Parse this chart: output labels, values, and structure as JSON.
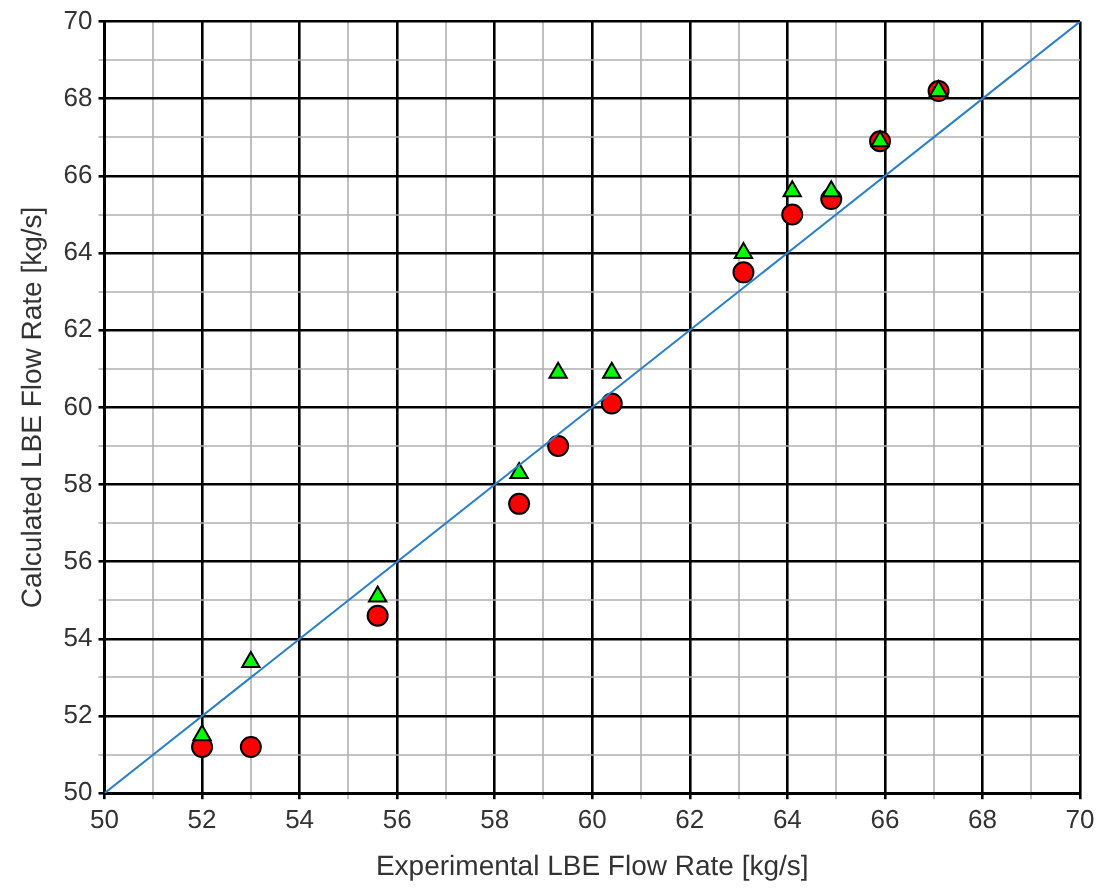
{
  "chart_data": {
    "type": "scatter",
    "xlabel": "Experimental LBE Flow Rate [kg/s]",
    "ylabel": "Calculated LBE Flow Rate [kg/s]",
    "x": [
      52,
      53,
      55.6,
      58.5,
      59.3,
      60.4,
      63.1,
      64.1,
      64.9,
      65.9,
      67.1
    ],
    "series": [
      {
        "color": "#ff0000",
        "marker": "circle",
        "values": [
          51.2,
          51.2,
          54.6,
          57.5,
          59.0,
          60.1,
          63.5,
          65.0,
          65.4,
          66.9,
          68.2
        ]
      },
      {
        "color": "#00ff00",
        "marker": "triangle",
        "values": [
          51.5,
          53.4,
          55.1,
          58.3,
          60.9,
          60.9,
          64.0,
          65.6,
          65.6,
          66.9,
          68.2
        ]
      },
      {
        "type": "line",
        "color": "#2a7fc7",
        "marker": "none",
        "x": [
          50,
          70
        ],
        "values": [
          50,
          70
        ]
      }
    ],
    "xlim": [
      50,
      70
    ],
    "ylim": [
      50,
      70
    ],
    "xticks": [
      50,
      {
        "value": 51,
        "label": null
      },
      52,
      {
        "value": 53,
        "label": null
      },
      54,
      {
        "value": 55,
        "label": null
      },
      56,
      {
        "value": 57,
        "label": null
      },
      58,
      {
        "value": 59,
        "label": null
      },
      60,
      {
        "value": 61,
        "label": null
      },
      62,
      {
        "value": 63,
        "label": null
      },
      64,
      {
        "value": 65,
        "label": null
      },
      66,
      {
        "value": 67,
        "label": null
      },
      68,
      {
        "value": 69,
        "label": null
      },
      70
    ],
    "yticks": [
      50,
      {
        "value": 51,
        "label": null
      },
      52,
      {
        "value": 53,
        "label": null
      },
      54,
      {
        "value": 55,
        "label": null
      },
      56,
      {
        "value": 57,
        "label": null
      },
      58,
      {
        "value": 59,
        "label": null
      },
      60,
      {
        "value": 61,
        "label": null
      },
      62,
      {
        "value": 63,
        "label": null
      },
      64,
      {
        "value": 65,
        "label": null
      },
      66,
      {
        "value": 67,
        "label": null
      },
      68,
      {
        "value": 69,
        "label": null
      },
      70
    ],
    "grid": true,
    "legend": false
  }
}
